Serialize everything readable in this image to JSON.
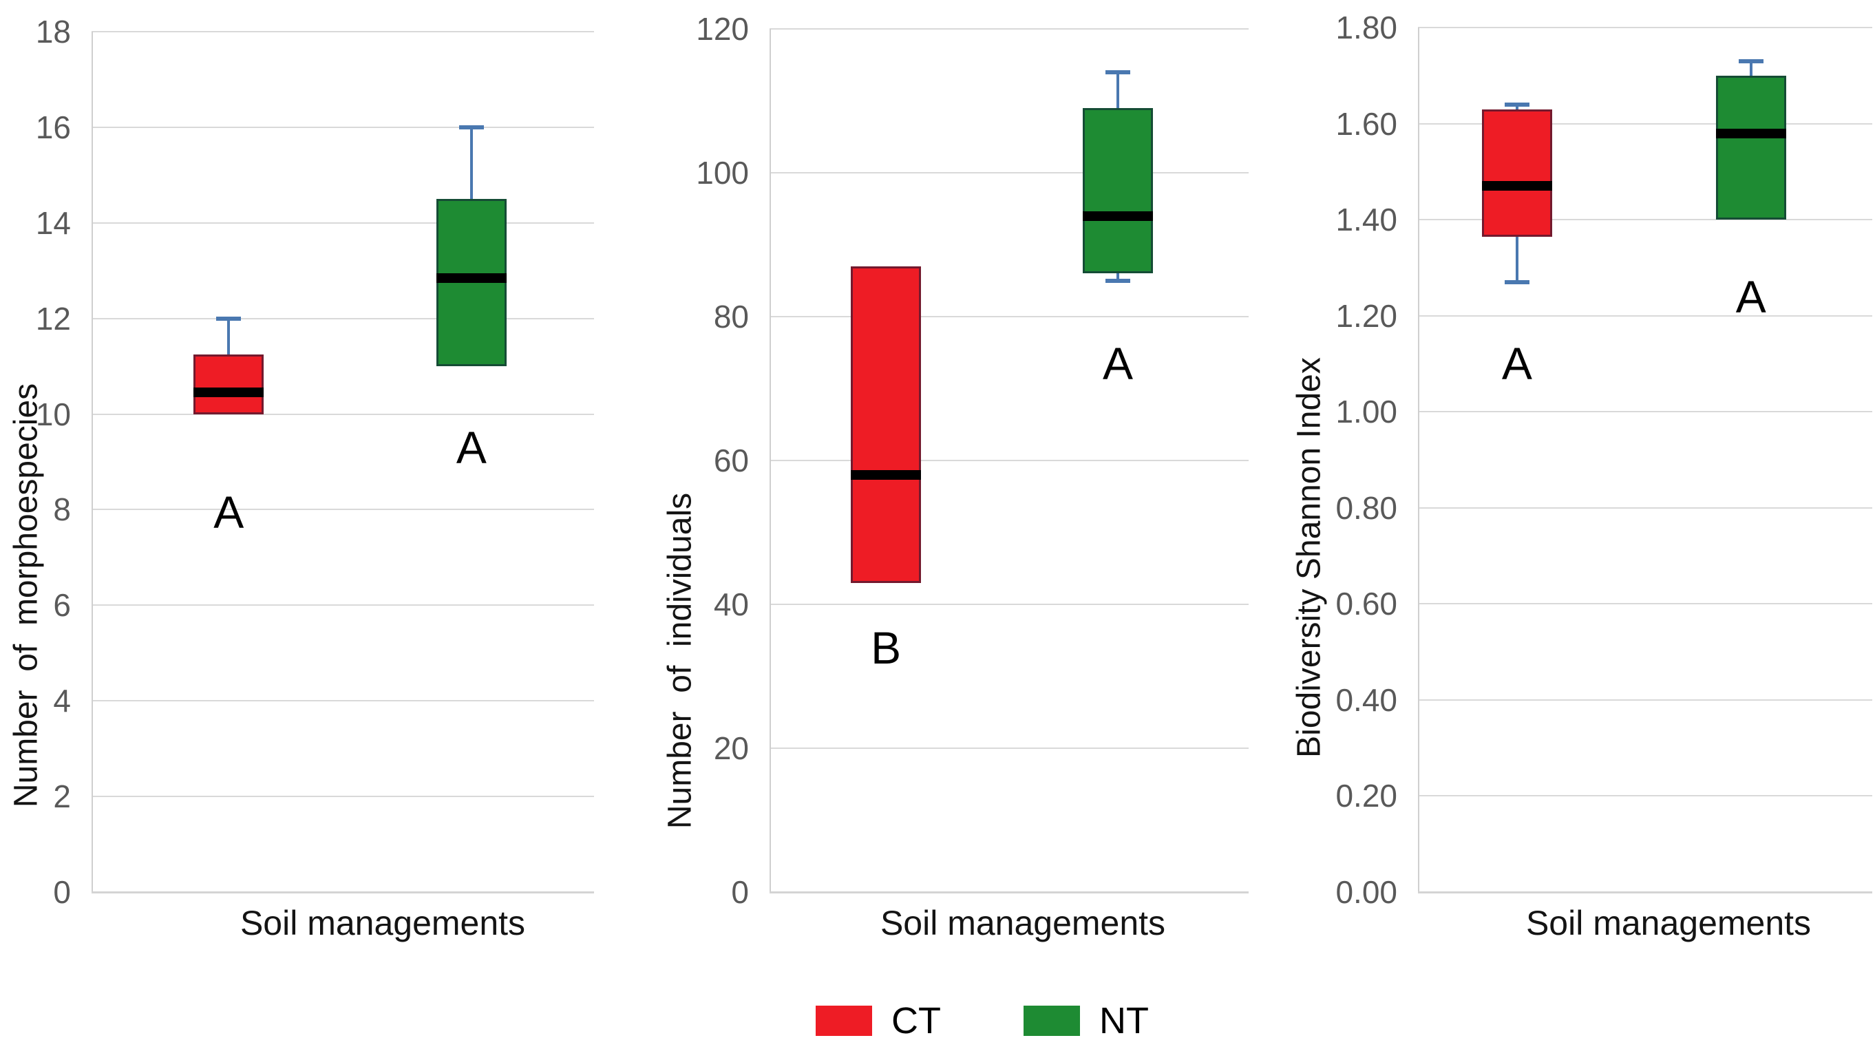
{
  "figure": {
    "legend": {
      "items": [
        {
          "label": "CT",
          "color": "#ee1c25"
        },
        {
          "label": "NT",
          "color": "#1e8b33"
        }
      ]
    },
    "colors": {
      "ct_fill": "#ee1c25",
      "nt_fill": "#1e8b33",
      "whisker": "#4a78b0",
      "median": "#000000",
      "gridline": "#d9d9d9",
      "tick_text": "#595959",
      "label_text": "#141414"
    }
  },
  "chart_data": [
    {
      "type": "boxplot",
      "ylabel": "Number  of  morphoespecies",
      "xlabel": "Soil managements",
      "ylim": [
        0,
        18
      ],
      "grid": true,
      "ytick_labels": [
        "0",
        "2",
        "4",
        "6",
        "8",
        "10",
        "12",
        "14",
        "16",
        "18"
      ],
      "categories": [
        "CT",
        "NT"
      ],
      "series": [
        {
          "name": "CT",
          "color": "#ee1c25",
          "whisker_low": null,
          "q1": 10,
          "median": 10.45,
          "q3": 11.25,
          "whisker_high": 12,
          "sig_letter": "A",
          "sig_letter_y": 7.95
        },
        {
          "name": "NT",
          "color": "#1e8b33",
          "whisker_low": null,
          "q1": 11,
          "median": 12.85,
          "q3": 14.5,
          "whisker_high": 16,
          "sig_letter": "A",
          "sig_letter_y": 9.3
        }
      ]
    },
    {
      "type": "boxplot",
      "ylabel": "Number  of  individuals",
      "xlabel": "Soil managements",
      "ylim": [
        0,
        120
      ],
      "grid": true,
      "ytick_labels": [
        "0",
        "20",
        "40",
        "60",
        "80",
        "100",
        "120"
      ],
      "categories": [
        "CT",
        "NT"
      ],
      "series": [
        {
          "name": "CT",
          "color": "#ee1c25",
          "whisker_low": null,
          "q1": 43,
          "median": 58,
          "q3": 87,
          "whisker_high": null,
          "sig_letter": "B",
          "sig_letter_y": 34
        },
        {
          "name": "NT",
          "color": "#1e8b33",
          "whisker_low": 85,
          "q1": 86,
          "median": 94,
          "q3": 109,
          "whisker_high": 114,
          "sig_letter": "A",
          "sig_letter_y": 73.5
        }
      ]
    },
    {
      "type": "boxplot",
      "ylabel": "Biodiversity Shannon Index",
      "xlabel": "Soil managements",
      "ylim": [
        0,
        1.8
      ],
      "grid": true,
      "ytick_labels": [
        "0.00",
        "0.20",
        "0.40",
        "0.60",
        "0.80",
        "1.00",
        "1.20",
        "1.40",
        "1.60",
        "1.80"
      ],
      "categories": [
        "CT",
        "NT"
      ],
      "series": [
        {
          "name": "CT",
          "color": "#ee1c25",
          "whisker_low": 1.27,
          "q1": 1.365,
          "median": 1.47,
          "q3": 1.63,
          "whisker_high": 1.64,
          "sig_letter": "A",
          "sig_letter_y": 1.1
        },
        {
          "name": "NT",
          "color": "#1e8b33",
          "whisker_low": null,
          "q1": 1.4,
          "median": 1.58,
          "q3": 1.7,
          "whisker_high": 1.73,
          "sig_letter": "A",
          "sig_letter_y": 1.24
        }
      ]
    }
  ]
}
